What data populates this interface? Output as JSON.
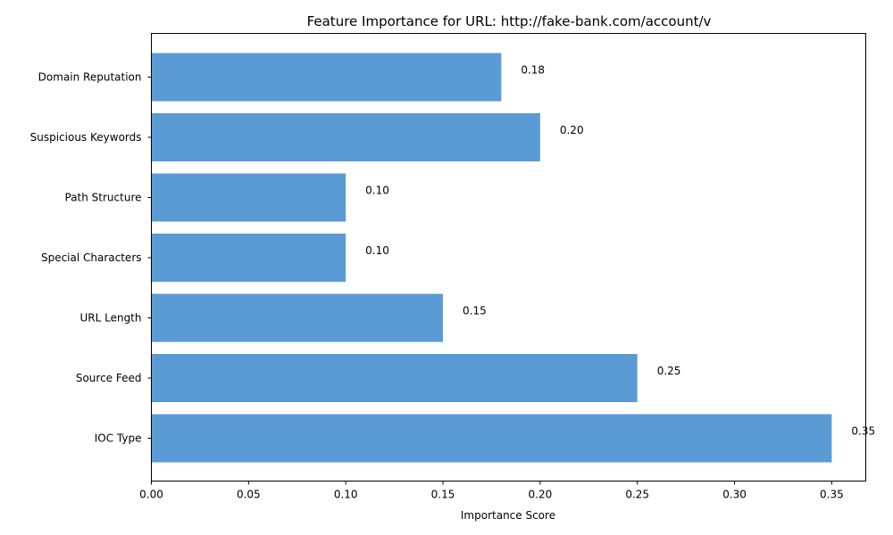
{
  "chart_data": {
    "type": "bar",
    "orientation": "horizontal",
    "title": "Feature Importance for URL: http://fake-bank.com/account/v",
    "xlabel": "Importance Score",
    "ylabel": "",
    "categories": [
      "IOC Type",
      "Source Feed",
      "URL Length",
      "Special Characters",
      "Path Structure",
      "Suspicious Keywords",
      "Domain Reputation"
    ],
    "values": [
      0.35,
      0.25,
      0.15,
      0.1,
      0.1,
      0.2,
      0.18
    ],
    "data_labels": [
      "0.35",
      "0.25",
      "0.15",
      "0.10",
      "0.10",
      "0.20",
      "0.18"
    ],
    "xlim": [
      0,
      0.3675
    ],
    "xticks": [
      0.0,
      0.05,
      0.1,
      0.15,
      0.2,
      0.25,
      0.3,
      0.35
    ],
    "xtick_labels": [
      "0.00",
      "0.05",
      "0.10",
      "0.15",
      "0.20",
      "0.25",
      "0.30",
      "0.35"
    ],
    "grid": false,
    "legend": "none",
    "bar_color": "#5b9bd5"
  }
}
